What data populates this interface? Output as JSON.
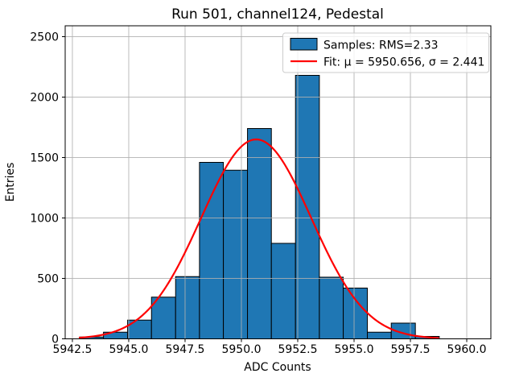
{
  "title": "Run 501, channel124, Pedestal",
  "axes": {
    "xlabel": "ADC Counts",
    "ylabel": "Entries",
    "x_tick_labels": [
      "5942.5",
      "5945.0",
      "5947.5",
      "5950.0",
      "5952.5",
      "5955.0",
      "5957.5",
      "5960.0"
    ],
    "x_tick_values": [
      5942.5,
      5945.0,
      5947.5,
      5950.0,
      5952.5,
      5955.0,
      5957.5,
      5960.0
    ],
    "y_tick_labels": [
      "0",
      "500",
      "1000",
      "1500",
      "2000",
      "2500"
    ],
    "y_tick_values": [
      0,
      500,
      1000,
      1500,
      2000,
      2500
    ]
  },
  "legend": {
    "samples_label": "Samples: RMS=2.33",
    "fit_label": "Fit: μ = 5950.656, σ = 2.441"
  },
  "colors": {
    "bar_fill": "#1f77b4",
    "bar_edge": "#000000",
    "fit_line": "#ff0000",
    "grid": "#b0b0b0",
    "spine": "#000000",
    "legend_edge": "#cccccc"
  },
  "chart_data": {
    "type": "bar",
    "subtype": "histogram_with_gaussian_fit",
    "title": "Run 501, channel124, Pedestal",
    "xlabel": "ADC Counts",
    "ylabel": "Entries",
    "bin_edges": [
      5942.82,
      5943.88,
      5944.95,
      5946.01,
      5947.08,
      5948.14,
      5949.2,
      5950.27,
      5951.33,
      5952.4,
      5953.46,
      5954.52,
      5955.59,
      5956.65,
      5957.72,
      5958.78
    ],
    "counts": [
      15,
      55,
      155,
      345,
      515,
      1460,
      1395,
      1740,
      790,
      2180,
      510,
      420,
      55,
      130,
      20
    ],
    "fit": {
      "mu": 5950.656,
      "sigma": 2.441,
      "peak": 1650,
      "x_start": 5942.82,
      "x_end": 5958.78
    },
    "samples_rms": 2.33,
    "xlim": [
      5942.18,
      5961.07
    ],
    "ylim": [
      0,
      2590
    ],
    "grid": true,
    "grid_above_bars": true,
    "legend_loc": "upper right"
  }
}
